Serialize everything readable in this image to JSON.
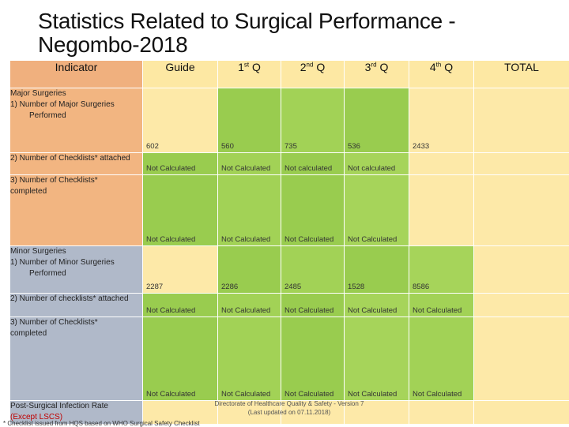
{
  "title": "Statistics Related to Surgical Performance - Negombo-2018",
  "headers": {
    "indicator": "Indicator",
    "guide": "Guide",
    "q1": "1",
    "q1_sup": "st",
    "q1_suffix": " Q",
    "q2": "2",
    "q2_sup": "nd",
    "q2_suffix": " Q",
    "q3": "3",
    "q3_sup": "rd",
    "q3_suffix": " Q",
    "q4": "4",
    "q4_sup": "th",
    "q4_suffix": " Q",
    "total": "TOTAL"
  },
  "major": {
    "section": "Major Surgeries",
    "item1": "1)      Number of Major Surgeries",
    "item1b": "Performed",
    "item2": "2)    Number of Checklists* attached",
    "item3": "3)    Number of Checklists*",
    "item3b": "completed",
    "performed": [
      "602",
      "560",
      "735",
      "536",
      "2433"
    ],
    "attached": [
      "Not Calculated",
      "Not Calculated",
      "Not calculated",
      "Not calculated"
    ],
    "completed": [
      "Not Calculated",
      "Not Calculated",
      "Not Calculated",
      "Not Calculated"
    ]
  },
  "minor": {
    "section": "Minor Surgeries",
    "item1": "1)      Number of Minor Surgeries",
    "item1b": "Performed",
    "item2": "2)    Number of checklists* attached",
    "item3": "3)    Number of Checklists*",
    "item3b": "completed",
    "performed": [
      "2287",
      "2286",
      "2485",
      "1528",
      "8586"
    ],
    "attached": [
      "Not Calculated",
      "Not Calculated",
      "Not Calculated",
      "Not Calculated",
      "Not Calculated"
    ],
    "completed": [
      "Not Calculated",
      "Not Calculated",
      "Not Calculated",
      "Not Calculated",
      "Not Calculated"
    ]
  },
  "psi": {
    "label": "Post-Surgical Infection Rate",
    "except": "(Except LSCS)"
  },
  "footer": {
    "line1": "Directorate of Healthcare Quality & Safety - Version 7",
    "line2": "(Last updated on 07.11.2018)"
  },
  "note": "* Checklist issued from HQS based on WHO Surgical Safety Checklist"
}
